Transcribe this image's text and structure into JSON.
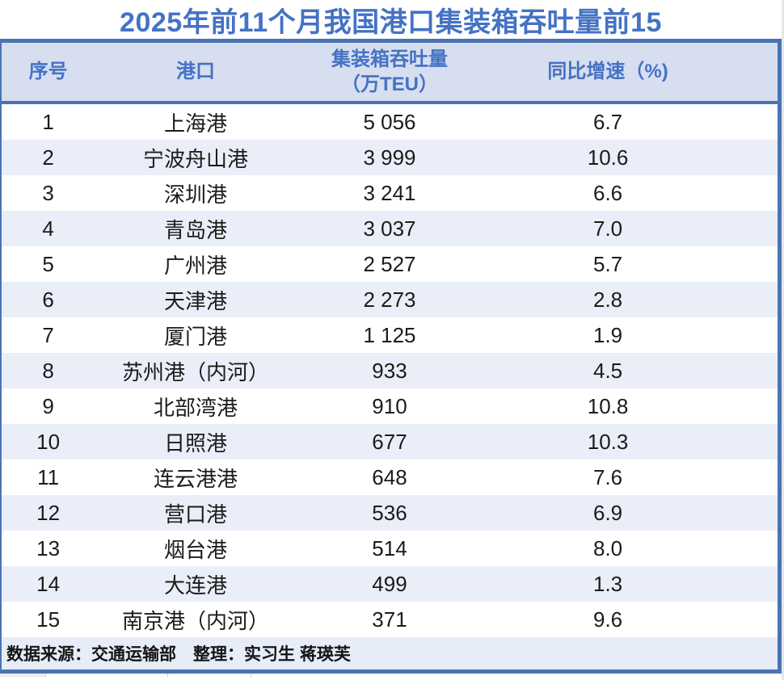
{
  "title": "2025年前11个月我国港口集装箱吞吐量前15",
  "table": {
    "headers": {
      "index": "序号",
      "port": "港口",
      "throughput_line1": "集装箱吞吐量",
      "throughput_line2": "（万TEU）",
      "growth": "同比增速（%)"
    },
    "rows": [
      {
        "index": "1",
        "port": "上海港",
        "throughput": "5 056",
        "growth": "6.7"
      },
      {
        "index": "2",
        "port": "宁波舟山港",
        "throughput": "3 999",
        "growth": "10.6"
      },
      {
        "index": "3",
        "port": "深圳港",
        "throughput": "3 241",
        "growth": "6.6"
      },
      {
        "index": "4",
        "port": "青岛港",
        "throughput": "3 037",
        "growth": "7.0"
      },
      {
        "index": "5",
        "port": "广州港",
        "throughput": "2 527",
        "growth": "5.7"
      },
      {
        "index": "6",
        "port": "天津港",
        "throughput": "2 273",
        "growth": "2.8"
      },
      {
        "index": "7",
        "port": "厦门港",
        "throughput": "1 125",
        "growth": "1.9"
      },
      {
        "index": "8",
        "port": "苏州港（内河）",
        "throughput": "933",
        "growth": "4.5"
      },
      {
        "index": "9",
        "port": "北部湾港",
        "throughput": "910",
        "growth": "10.8"
      },
      {
        "index": "10",
        "port": "日照港",
        "throughput": "677",
        "growth": "10.3"
      },
      {
        "index": "11",
        "port": "连云港港",
        "throughput": "648",
        "growth": "7.6"
      },
      {
        "index": "12",
        "port": "营口港",
        "throughput": "536",
        "growth": "6.9"
      },
      {
        "index": "13",
        "port": "烟台港",
        "throughput": "514",
        "growth": "8.0"
      },
      {
        "index": "14",
        "port": "大连港",
        "throughput": "499",
        "growth": "1.3"
      },
      {
        "index": "15",
        "port": "南京港（内河）",
        "throughput": "371",
        "growth": "9.6"
      }
    ]
  },
  "footer": {
    "source_note": "数据来源：交通运输部　整理：实习生 蒋瑛芙"
  },
  "colors": {
    "accent_blue": "#4472c4",
    "border_blue": "#4a73b4",
    "header_bg": "#d7def0",
    "zebra_row_bg": "#e9eef8",
    "footer_bg": "#e6ecf8",
    "row_text": "#1b1b1b",
    "gutter_gray": "#e5e6e9"
  },
  "chart_data": {
    "type": "table",
    "title": "2025年前11个月我国港口集装箱吞吐量前15",
    "columns": [
      "序号",
      "港口",
      "集装箱吞吐量（万TEU）",
      "同比增速（%)"
    ],
    "rows": [
      [
        1,
        "上海港",
        5056,
        6.7
      ],
      [
        2,
        "宁波舟山港",
        3999,
        10.6
      ],
      [
        3,
        "深圳港",
        3241,
        6.6
      ],
      [
        4,
        "青岛港",
        3037,
        7.0
      ],
      [
        5,
        "广州港",
        2527,
        5.7
      ],
      [
        6,
        "天津港",
        2273,
        2.8
      ],
      [
        7,
        "厦门港",
        1125,
        1.9
      ],
      [
        8,
        "苏州港（内河）",
        933,
        4.5
      ],
      [
        9,
        "北部湾港",
        910,
        10.8
      ],
      [
        10,
        "日照港",
        677,
        10.3
      ],
      [
        11,
        "连云港港",
        648,
        7.6
      ],
      [
        12,
        "营口港",
        536,
        6.9
      ],
      [
        13,
        "烟台港",
        514,
        8.0
      ],
      [
        14,
        "大连港",
        499,
        1.3
      ],
      [
        15,
        "南京港（内河）",
        371,
        9.6
      ]
    ],
    "source": "数据来源：交通运输部　整理：实习生 蒋瑛芙"
  }
}
